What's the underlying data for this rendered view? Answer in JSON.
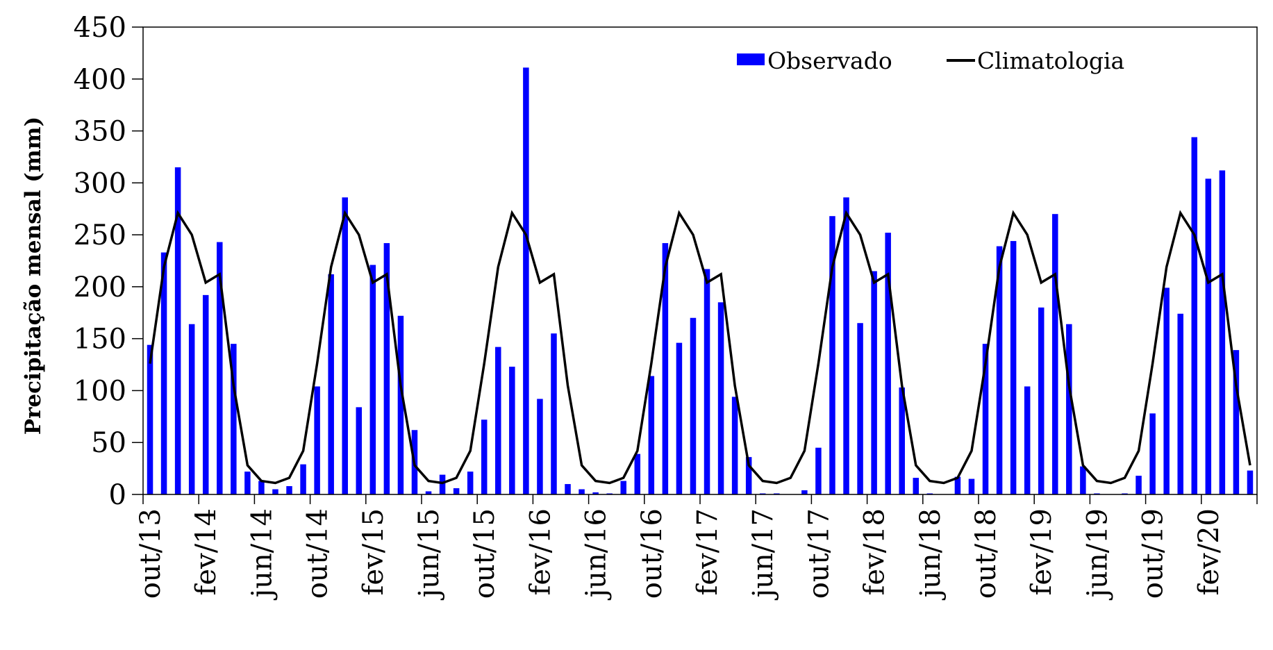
{
  "chart_data": {
    "type": "bar",
    "title": "",
    "xlabel": "",
    "ylabel": "Precipitação mensal (mm)",
    "ylim": [
      0,
      450
    ],
    "yticks": [
      0,
      50,
      100,
      150,
      200,
      250,
      300,
      350,
      400,
      450
    ],
    "grid": false,
    "legend_placement": "top-right",
    "months": [
      "out/13",
      "nov/13",
      "dez/13",
      "jan/14",
      "fev/14",
      "mar/14",
      "abr/14",
      "mai/14",
      "jun/14",
      "jul/14",
      "ago/14",
      "set/14",
      "out/14",
      "nov/14",
      "dez/14",
      "jan/15",
      "fev/15",
      "mar/15",
      "abr/15",
      "mai/15",
      "jun/15",
      "jul/15",
      "ago/15",
      "set/15",
      "out/15",
      "nov/15",
      "dez/15",
      "jan/16",
      "fev/16",
      "mar/16",
      "abr/16",
      "mai/16",
      "jun/16",
      "jul/16",
      "ago/16",
      "set/16",
      "out/16",
      "nov/16",
      "dez/16",
      "jan/17",
      "fev/17",
      "mar/17",
      "abr/17",
      "mai/17",
      "jun/17",
      "jul/17",
      "ago/17",
      "set/17",
      "out/17",
      "nov/17",
      "dez/17",
      "jan/18",
      "fev/18",
      "mar/18",
      "abr/18",
      "mai/18",
      "jun/18",
      "jul/18",
      "ago/18",
      "set/18",
      "out/18",
      "nov/18",
      "dez/18",
      "jan/19",
      "fev/19",
      "mar/19",
      "abr/19",
      "mai/19",
      "jun/19",
      "jul/19",
      "ago/19",
      "set/19",
      "out/19",
      "nov/19",
      "dez/19",
      "jan/20",
      "fev/20",
      "mar/20",
      "abr/20",
      "mai/20"
    ],
    "tick_labels": [
      "out/13",
      "fev/14",
      "jun/14",
      "out/14",
      "fev/15",
      "jun/15",
      "out/15",
      "fev/16",
      "jun/16",
      "out/16",
      "fev/17",
      "jun/17",
      "out/17",
      "fev/18",
      "jun/18",
      "out/18",
      "fev/19",
      "jun/19",
      "out/19",
      "fev/20"
    ],
    "series": [
      {
        "name": "Observado",
        "kind": "bar",
        "color": "#0000ff",
        "values": [
          144,
          233,
          315,
          164,
          192,
          243,
          145,
          22,
          13,
          5,
          8,
          29,
          104,
          212,
          286,
          84,
          221,
          242,
          172,
          62,
          3,
          19,
          6,
          22,
          72,
          142,
          123,
          411,
          92,
          155,
          10,
          5,
          2,
          1,
          13,
          39,
          114,
          242,
          146,
          170,
          217,
          185,
          94,
          36,
          1,
          1,
          0,
          4,
          45,
          268,
          286,
          165,
          215,
          252,
          103,
          16,
          1,
          0,
          17,
          15,
          145,
          239,
          244,
          104,
          180,
          270,
          164,
          27,
          1,
          0,
          1,
          18,
          78,
          199,
          174,
          344,
          304,
          312,
          139,
          23
        ]
      },
      {
        "name": "Climatologia",
        "kind": "line",
        "color": "#000000",
        "values": [
          126,
          219,
          271,
          250,
          204,
          212,
          105,
          28,
          13,
          11,
          16,
          42,
          126,
          219,
          271,
          250,
          204,
          212,
          105,
          28,
          13,
          11,
          16,
          42,
          126,
          219,
          271,
          250,
          204,
          212,
          105,
          28,
          13,
          11,
          16,
          42,
          126,
          219,
          271,
          250,
          204,
          212,
          105,
          28,
          13,
          11,
          16,
          42,
          126,
          219,
          271,
          250,
          204,
          212,
          105,
          28,
          13,
          11,
          16,
          42,
          126,
          219,
          271,
          250,
          204,
          212,
          105,
          28,
          13,
          11,
          16,
          42,
          126,
          219,
          271,
          250,
          204,
          212,
          105,
          28
        ]
      }
    ]
  }
}
